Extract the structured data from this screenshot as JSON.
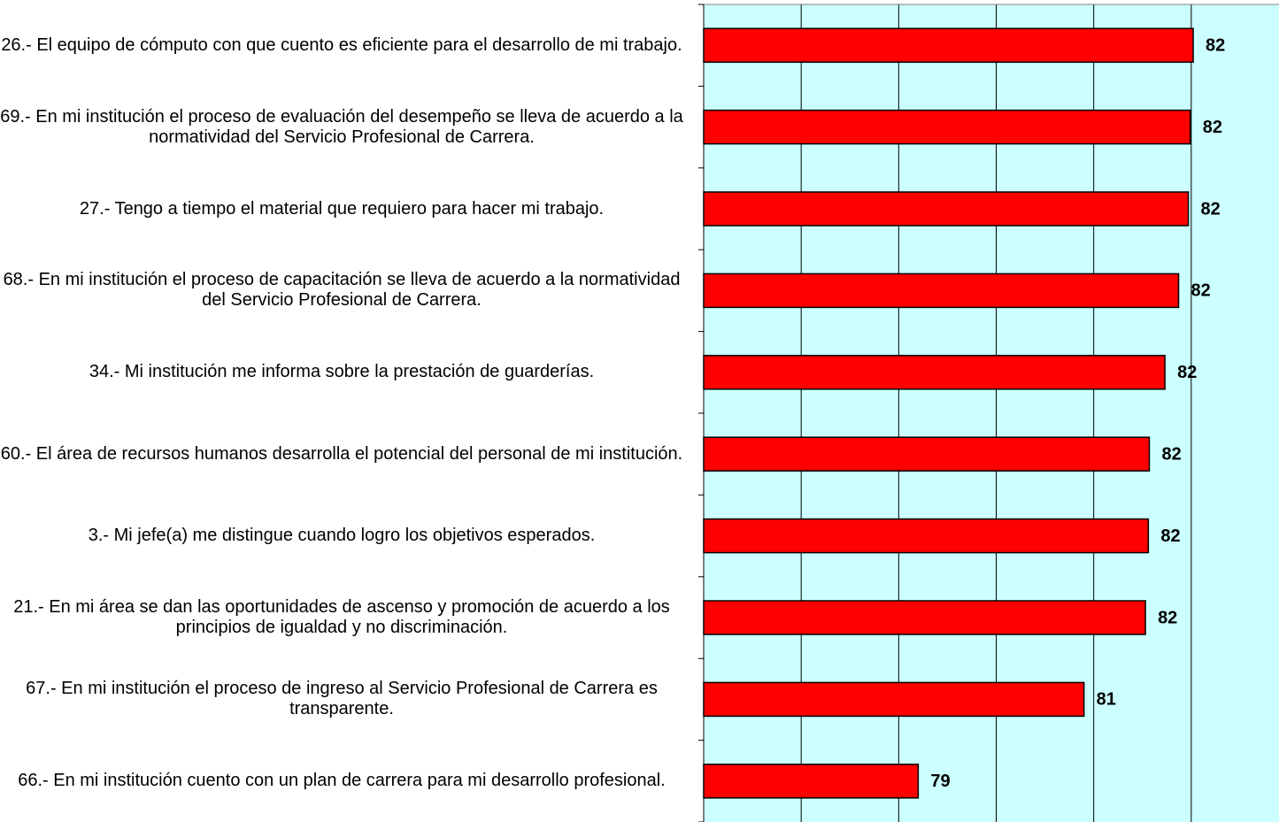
{
  "chart_data": {
    "type": "bar",
    "orientation": "horizontal",
    "categories": [
      "26.- El equipo de cómputo con que cuento es eficiente para el desarrollo de mi trabajo.",
      "69.- En mi institución el proceso de evaluación del desempeño se lleva de acuerdo a la normatividad del Servicio Profesional de Carrera.",
      "27.- Tengo a tiempo el material que requiero para hacer mi trabajo.",
      "68.- En mi institución el proceso de capacitación se lleva de acuerdo a la normatividad del Servicio Profesional de Carrera.",
      "34.- Mi institución me informa sobre la prestación de guarderías.",
      "60.- El área de recursos humanos desarrolla el potencial del personal de mi institución.",
      "3.- Mi jefe(a) me distingue cuando logro los objetivos esperados.",
      "21.- En mi área se dan las oportunidades de ascenso y promoción de acuerdo a los principios de igualdad y no discriminación.",
      "67.- En mi institución el proceso de ingreso al Servicio Profesional de Carrera es transparente.",
      "66.- En mi institución cuento con un plan de carrera para mi desarrollo profesional."
    ],
    "values": [
      82.02,
      81.99,
      81.97,
      81.87,
      81.73,
      81.57,
      81.56,
      81.53,
      80.9,
      79.2
    ],
    "value_labels": [
      "82",
      "82",
      "82",
      "82",
      "82",
      "82",
      "82",
      "82",
      "81",
      "79"
    ],
    "color": "#ff0000",
    "xlim": [
      77,
      82.9
    ],
    "xticks": [
      77,
      78,
      79,
      80,
      81,
      82
    ],
    "grid": true
  }
}
